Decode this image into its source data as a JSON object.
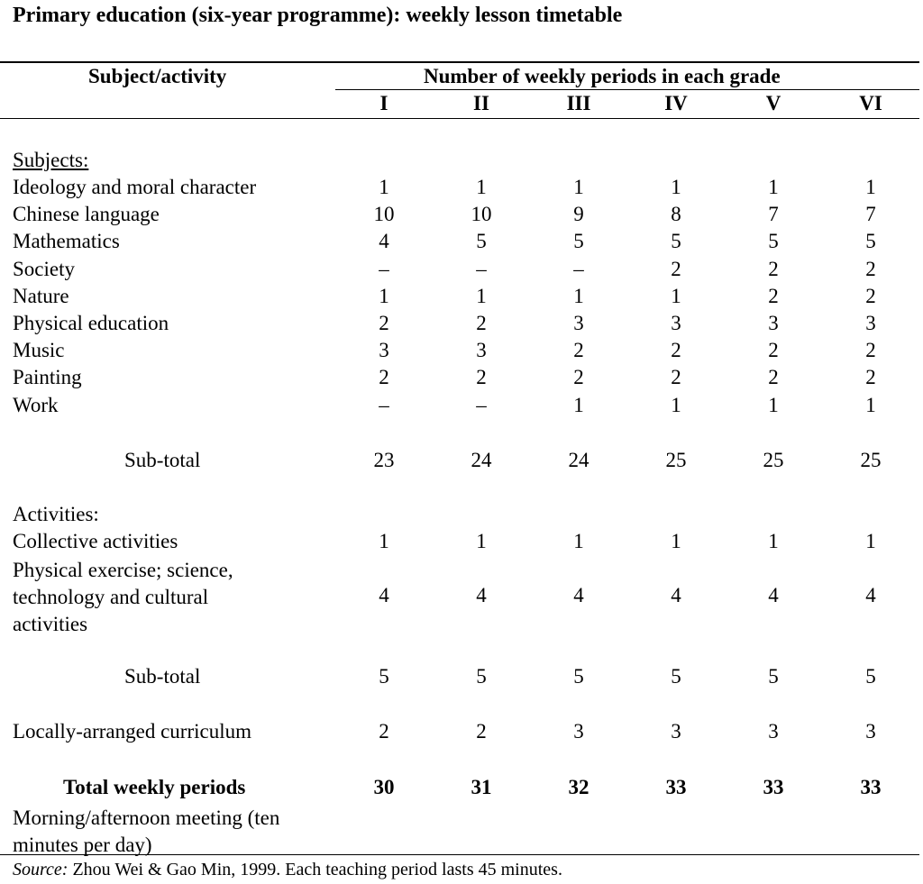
{
  "title": "Primary education (six-year programme): weekly lesson timetable",
  "header": {
    "subject_col": "Subject/activity",
    "group_col": "Number of weekly periods in each grade",
    "grades": [
      "I",
      "II",
      "III",
      "IV",
      "V",
      "VI"
    ]
  },
  "subjects_heading": "Subjects:",
  "subjects": [
    {
      "label": "Ideology and moral character",
      "values": [
        "1",
        "1",
        "1",
        "1",
        "1",
        "1"
      ]
    },
    {
      "label": "Chinese language",
      "values": [
        "10",
        "10",
        "9",
        "8",
        "7",
        "7"
      ]
    },
    {
      "label": "Mathematics",
      "values": [
        "4",
        "5",
        "5",
        "5",
        "5",
        "5"
      ]
    },
    {
      "label": "Society",
      "values": [
        "–",
        "–",
        "–",
        "2",
        "2",
        "2"
      ]
    },
    {
      "label": "Nature",
      "values": [
        "1",
        "1",
        "1",
        "1",
        "2",
        "2"
      ]
    },
    {
      "label": "Physical education",
      "values": [
        "2",
        "2",
        "3",
        "3",
        "3",
        "3"
      ]
    },
    {
      "label": "Music",
      "values": [
        "3",
        "3",
        "2",
        "2",
        "2",
        "2"
      ]
    },
    {
      "label": "Painting",
      "values": [
        "2",
        "2",
        "2",
        "2",
        "2",
        "2"
      ]
    },
    {
      "label": "Work",
      "values": [
        "–",
        "–",
        "1",
        "1",
        "1",
        "1"
      ]
    }
  ],
  "subjects_subtotal": {
    "label": "Sub-total",
    "values": [
      "23",
      "24",
      "24",
      "25",
      "25",
      "25"
    ]
  },
  "activities_heading": "Activities:",
  "activities": [
    {
      "label": "Collective activities",
      "values": [
        "1",
        "1",
        "1",
        "1",
        "1",
        "1"
      ]
    },
    {
      "label_lines": [
        "Physical exercise; science,",
        "technology and cultural",
        "activities"
      ],
      "values": [
        "4",
        "4",
        "4",
        "4",
        "4",
        "4"
      ]
    }
  ],
  "activities_subtotal": {
    "label": "Sub-total",
    "values": [
      "5",
      "5",
      "5",
      "5",
      "5",
      "5"
    ]
  },
  "local": {
    "label": "Locally-arranged curriculum",
    "values": [
      "2",
      "2",
      "3",
      "3",
      "3",
      "3"
    ]
  },
  "total": {
    "label": "Total weekly periods",
    "values": [
      "30",
      "31",
      "32",
      "33",
      "33",
      "33"
    ]
  },
  "meeting_lines": [
    "Morning/afternoon meeting (ten",
    "minutes per day)"
  ],
  "source": {
    "label": "Source:",
    "text": " Zhou Wei & Gao Min, 1999. Each teaching period lasts 45 minutes."
  }
}
